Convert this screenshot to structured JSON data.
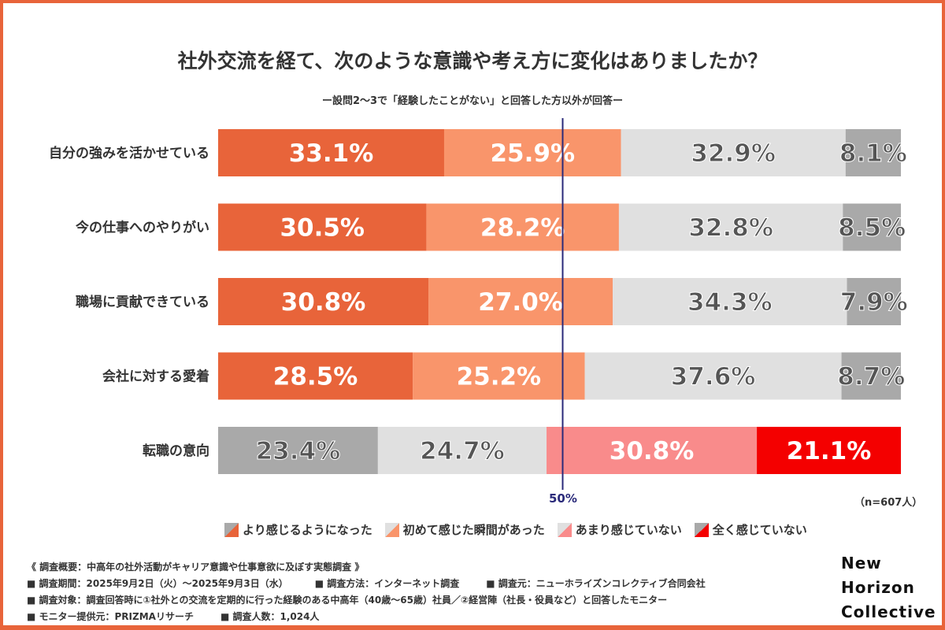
{
  "chart_data": {
    "type": "stacked-bar-horizontal",
    "title": "社外交流を経て、次のような意識や考え方に変化はありましたか？",
    "subtitle": "ー設問2〜3で「経験したことがない」と回答した方以外が回答ー",
    "xlim": [
      0,
      100
    ],
    "reference_line": {
      "value": 50,
      "label": "50%"
    },
    "sample_note": "（n=607人）",
    "legend_position": "bottom",
    "legend": [
      "より感じるようになった",
      "初めて感じた瞬間があった",
      "あまり感じていない",
      "全く感じていない"
    ],
    "categories": [
      "自分の強みを活かせている",
      "今の仕事へのやりがい",
      "職場に貢献できている",
      "会社に対する愛着",
      "転職の意向"
    ],
    "series": [
      {
        "name": "より感じるようになった",
        "values": [
          33.1,
          30.5,
          30.8,
          28.5,
          23.4
        ]
      },
      {
        "name": "初めて感じた瞬間があった",
        "values": [
          25.9,
          28.2,
          27.0,
          25.2,
          24.7
        ]
      },
      {
        "name": "あまり感じていない",
        "values": [
          32.9,
          32.8,
          34.3,
          37.6,
          30.8
        ]
      },
      {
        "name": "全く感じていない",
        "values": [
          8.1,
          8.5,
          7.9,
          8.7,
          21.1
        ]
      }
    ],
    "colors": {
      "positive_rows": [
        "#e8643a",
        "#f9956b",
        "#e0e0e0",
        "#a9a9a9"
      ],
      "reversed_row": [
        "#a9a9a9",
        "#e0e0e0",
        "#f98b8b",
        "#f40000"
      ]
    }
  },
  "footer": {
    "overview": "《 調査概要：中高年の社外活動がキャリア意識や仕事意欲に及ぼす実態調査 》",
    "period": "■ 調査期間：2025年9月2日（火）〜2025年9月3日（水）",
    "method": "■ 調査方法：インターネット調査",
    "source": "■ 調査元：ニューホライズンコレクティブ合同会社",
    "target": "■ 調査対象：調査回答時に①社外との交流を定期的に行った経験のある中高年（40歳〜65歳）社員／②経営陣（社長・役員など）と回答したモニター",
    "provider": "■ モニター提供元：PRIZMAリサーチ",
    "count": "■ 調査人数：1,024人"
  },
  "brand": [
    "New",
    "Horizon",
    "Collective"
  ]
}
